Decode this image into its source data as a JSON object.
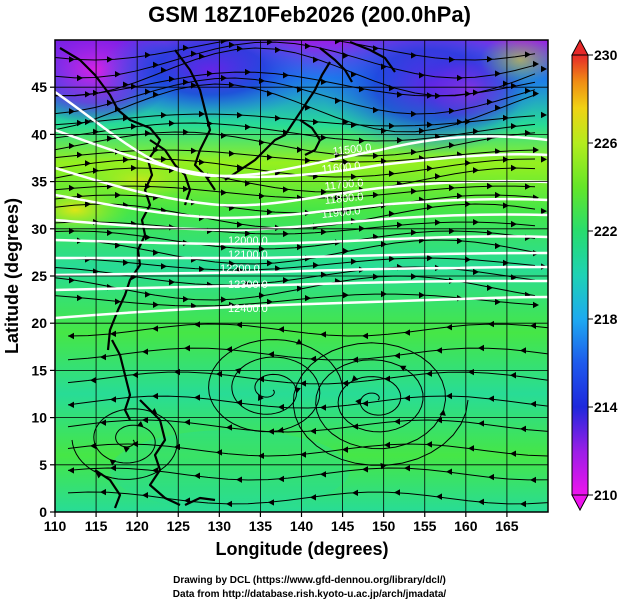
{
  "title": "GSM 18Z10Feb2026 (200.0hPa)",
  "xaxis": {
    "label": "Longitude (degrees)",
    "min": 110,
    "max": 170,
    "ticks": [
      "110",
      "115",
      "120",
      "125",
      "130",
      "135",
      "140",
      "145",
      "150",
      "155",
      "160",
      "165"
    ]
  },
  "yaxis": {
    "label": "Latitude (degrees)",
    "min": 0,
    "max": 50,
    "ticks": [
      "0",
      "5",
      "10",
      "15",
      "20",
      "25",
      "30",
      "35",
      "40",
      "45"
    ]
  },
  "colorbar": {
    "min": 210,
    "max": 230,
    "ticks": [
      "210",
      "214",
      "218",
      "222",
      "226",
      "230"
    ],
    "colors": [
      "#ee14ee",
      "#9a1ee6",
      "#1e28dc",
      "#1e78ec",
      "#1ec8d2",
      "#28dc96",
      "#46e646",
      "#96f01e",
      "#d2e614",
      "#f0b414",
      "#f06e14",
      "#e62828"
    ]
  },
  "contours": [
    {
      "label": "11900.0"
    },
    {
      "label": "11800.0"
    },
    {
      "label": "11700.0"
    },
    {
      "label": "11600.0"
    },
    {
      "label": "11500.0"
    },
    {
      "label": "12000.0"
    },
    {
      "label": "12100.0"
    },
    {
      "label": "12200.0"
    },
    {
      "label": "12300.0"
    },
    {
      "label": "12400.0"
    }
  ],
  "credits": {
    "line1": "Drawing by DCL (https://www.gfd-dennou.org/library/dcl/)",
    "line2": "Data from http://database.rish.kyoto-u.ac.jp/arch/jmadata/"
  }
}
